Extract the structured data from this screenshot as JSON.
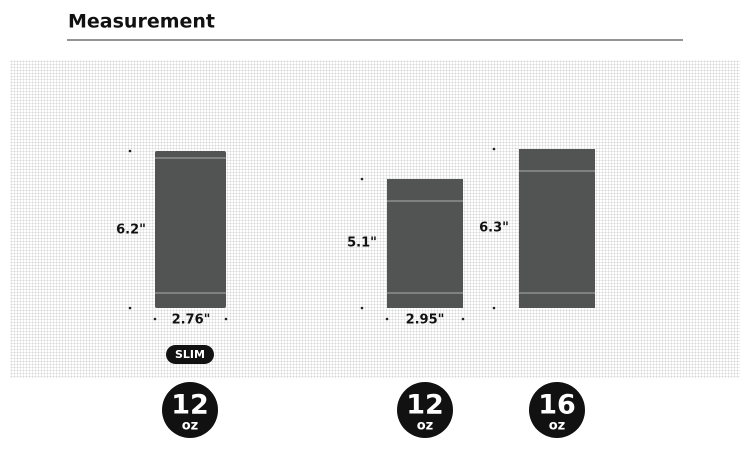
{
  "header": {
    "title": "Measurement"
  },
  "products": [
    {
      "height": "6.2\"",
      "width": "2.76\"",
      "badge": "SLIM",
      "size": "12",
      "unit": "oz"
    },
    {
      "height": "5.1\"",
      "width": "2.95\"",
      "size": "12",
      "unit": "oz"
    },
    {
      "height": "6.3\"",
      "size": "16",
      "unit": "oz"
    }
  ]
}
